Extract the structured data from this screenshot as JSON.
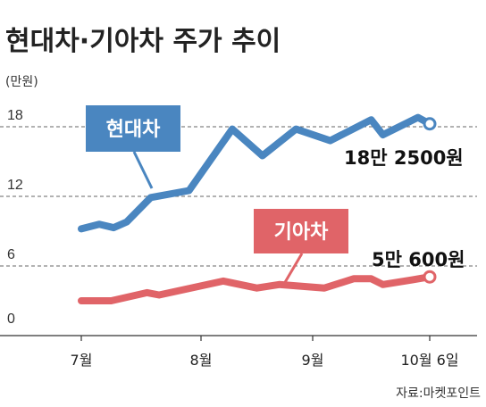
{
  "chart_data": {
    "type": "line",
    "title": "현대차·기아차 주가 추이",
    "unit": "(만원)",
    "source": "자료:마켓포인트",
    "ylim": [
      0,
      18
    ],
    "y_ticks": [
      "18",
      "12",
      "6",
      "0"
    ],
    "y_tick_values": [
      18,
      12,
      6,
      0
    ],
    "x_ticks": [
      "7월",
      "8월",
      "9월",
      "10월 6일"
    ],
    "x_tick_positions": [
      0,
      1,
      2,
      3
    ],
    "grid": "dashed horizontal",
    "series": [
      {
        "name": "현대차",
        "color": "#4a86c0",
        "end_label": "18만 2500원",
        "x": [
          0,
          0.15,
          0.27,
          0.38,
          0.58,
          0.9,
          1.28,
          1.55,
          1.85,
          2.15,
          2.5,
          2.6,
          2.9,
          3.0
        ],
        "values": [
          9.2,
          9.6,
          9.3,
          9.8,
          11.9,
          12.5,
          17.8,
          15.5,
          17.8,
          16.8,
          18.6,
          17.3,
          18.8,
          18.25
        ]
      },
      {
        "name": "기아차",
        "color": "#e06468",
        "end_label": "5만 600원",
        "x": [
          0,
          0.25,
          0.55,
          0.65,
          1.2,
          1.5,
          1.7,
          2.1,
          2.35,
          2.5,
          2.6,
          2.85,
          3.0
        ],
        "values": [
          3.0,
          3.0,
          3.7,
          3.5,
          4.7,
          4.1,
          4.4,
          4.1,
          4.9,
          4.9,
          4.4,
          4.8,
          5.06
        ]
      }
    ]
  }
}
